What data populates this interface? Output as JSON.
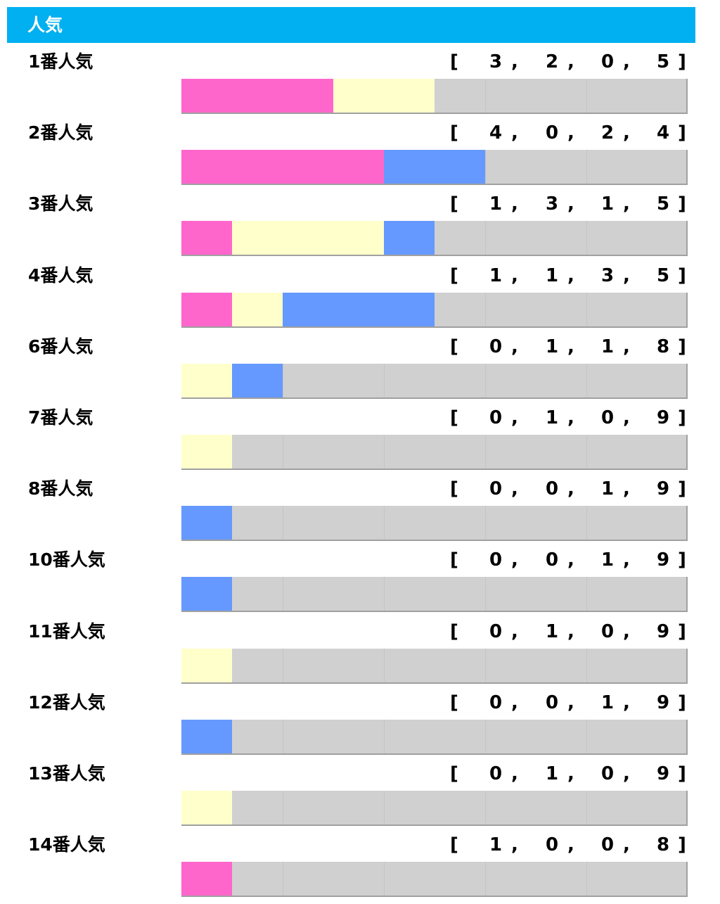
{
  "header": {
    "title": "人気"
  },
  "colors": {
    "header": "#00b0f0",
    "first": "#ff66cc",
    "second": "#ffffcc",
    "third": "#6699ff",
    "other": "#d0d0d0"
  },
  "chart_data": {
    "type": "bar",
    "stacked": true,
    "orientation": "horizontal",
    "categories": [
      "1番人気",
      "2番人気",
      "3番人気",
      "4番人気",
      "6番人気",
      "7番人気",
      "8番人気",
      "10番人気",
      "11番人気",
      "12番人気",
      "13番人気",
      "14番人気"
    ],
    "series": [
      {
        "values": [
          3,
          4,
          1,
          1,
          0,
          0,
          0,
          0,
          0,
          0,
          0,
          1
        ]
      },
      {
        "values": [
          2,
          0,
          3,
          1,
          1,
          1,
          0,
          0,
          1,
          0,
          1,
          0
        ]
      },
      {
        "values": [
          0,
          2,
          1,
          3,
          1,
          0,
          1,
          1,
          0,
          1,
          0,
          0
        ]
      },
      {
        "values": [
          5,
          4,
          5,
          5,
          8,
          9,
          9,
          9,
          9,
          9,
          9,
          8
        ]
      }
    ],
    "totals": [
      10,
      10,
      10,
      10,
      10,
      10,
      10,
      10,
      10,
      10,
      10,
      9
    ]
  },
  "rows": [
    {
      "label": "1番人気",
      "record": [
        "[",
        "3",
        ",",
        "2",
        ",",
        "0",
        ",",
        "5",
        "]"
      ]
    },
    {
      "label": "2番人気",
      "record": [
        "[",
        "4",
        ",",
        "0",
        ",",
        "2",
        ",",
        "4",
        "]"
      ]
    },
    {
      "label": "3番人気",
      "record": [
        "[",
        "1",
        ",",
        "3",
        ",",
        "1",
        ",",
        "5",
        "]"
      ]
    },
    {
      "label": "4番人気",
      "record": [
        "[",
        "1",
        ",",
        "1",
        ",",
        "3",
        ",",
        "5",
        "]"
      ]
    },
    {
      "label": "6番人気",
      "record": [
        "[",
        "0",
        ",",
        "1",
        ",",
        "1",
        ",",
        "8",
        "]"
      ]
    },
    {
      "label": "7番人気",
      "record": [
        "[",
        "0",
        ",",
        "1",
        ",",
        "0",
        ",",
        "9",
        "]"
      ]
    },
    {
      "label": "8番人気",
      "record": [
        "[",
        "0",
        ",",
        "0",
        ",",
        "1",
        ",",
        "9",
        "]"
      ]
    },
    {
      "label": "10番人気",
      "record": [
        "[",
        "0",
        ",",
        "0",
        ",",
        "1",
        ",",
        "9",
        "]"
      ]
    },
    {
      "label": "11番人気",
      "record": [
        "[",
        "0",
        ",",
        "1",
        ",",
        "0",
        ",",
        "9",
        "]"
      ]
    },
    {
      "label": "12番人気",
      "record": [
        "[",
        "0",
        ",",
        "0",
        ",",
        "1",
        ",",
        "9",
        "]"
      ]
    },
    {
      "label": "13番人気",
      "record": [
        "[",
        "0",
        ",",
        "1",
        ",",
        "0",
        ",",
        "9",
        "]"
      ]
    },
    {
      "label": "14番人気",
      "record": [
        "[",
        "1",
        ",",
        "0",
        ",",
        "0",
        ",",
        "8",
        "]"
      ]
    }
  ]
}
